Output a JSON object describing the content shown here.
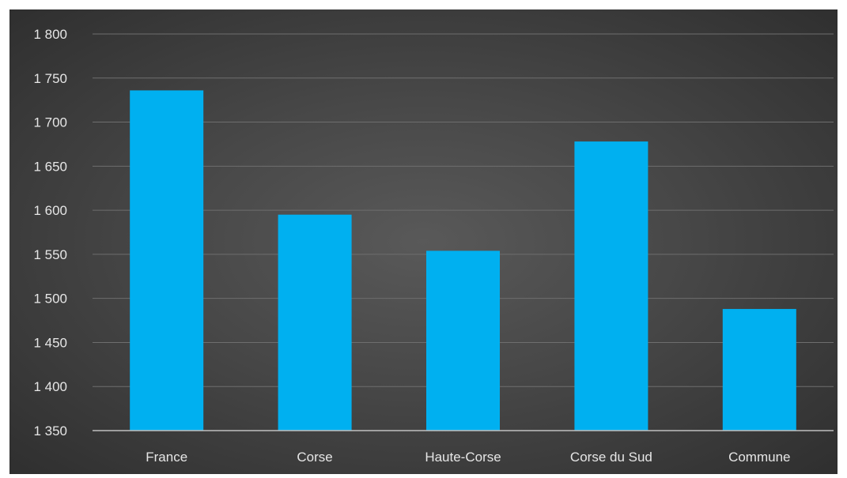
{
  "chart_data": {
    "type": "bar",
    "categories": [
      "France",
      "Corse",
      "Haute-Corse",
      "Corse du Sud",
      "Commune"
    ],
    "values": [
      1736,
      1595,
      1554,
      1678,
      1488
    ],
    "ylim": [
      1350,
      1800
    ],
    "yticks": [
      1350,
      1400,
      1450,
      1500,
      1550,
      1600,
      1650,
      1700,
      1750,
      1800
    ],
    "ytick_labels": [
      "1 350",
      "1 400",
      "1 450",
      "1 500",
      "1 550",
      "1 600",
      "1 650",
      "1 700",
      "1 750",
      "1 800"
    ],
    "grid": true,
    "legend": "none",
    "title": "",
    "xlabel": "",
    "ylabel": ""
  },
  "colors": {
    "bar": "#00B0F0",
    "gridline": "#6e6e6e",
    "axis_line": "#bfbfbf",
    "text": "#e6e6e6"
  }
}
